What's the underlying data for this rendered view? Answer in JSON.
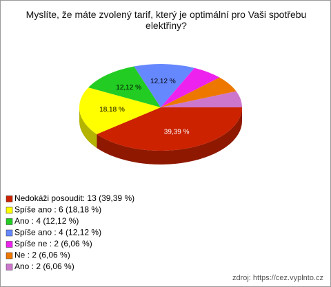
{
  "chart_data": {
    "type": "pie",
    "title": "Myslíte, že máte zvolený tarif, který je optimální pro Vaši spotřebu elektřiny?",
    "categories": [
      "Nedokáži posoudit: 13 (39,39 %)",
      "Spíše ano : 6 (18,18 %)",
      "Ano : 4 (12,12 %)",
      "Spíše ano : 4 (12,12 %)",
      "Spíše ne : 2 (6,06 %)",
      "Ne : 2 (6,06 %)",
      "Ano : 2 (6,06 %)"
    ],
    "values": [
      39.39,
      18.18,
      12.12,
      12.12,
      6.06,
      6.06,
      6.06
    ],
    "value_labels": [
      "39,39 %",
      "18,18 %",
      "12,12 %",
      "12,12 %",
      null,
      null,
      null
    ],
    "colors": [
      "#cc2200",
      "#ffff00",
      "#22cc22",
      "#6688ff",
      "#ee22ee",
      "#ee7700",
      "#cc77cc"
    ],
    "source": "zdroj: https://cez.vyplnto.cz"
  }
}
